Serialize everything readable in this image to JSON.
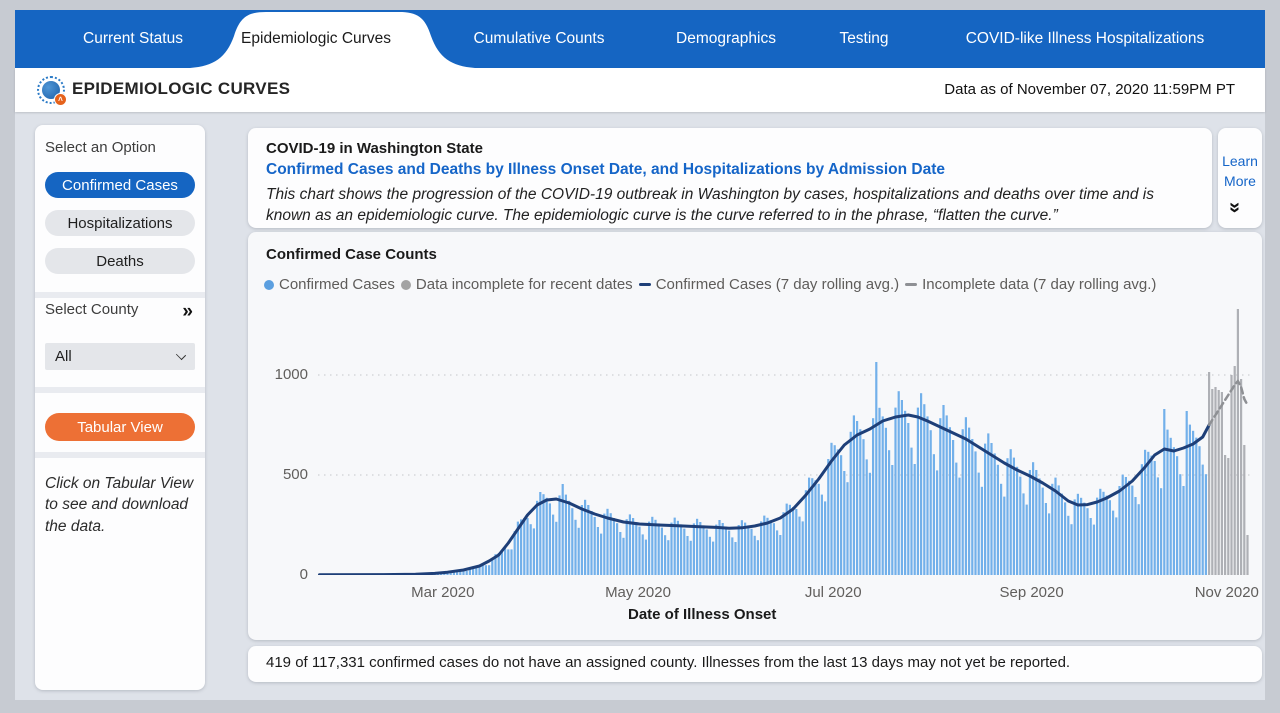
{
  "nav": {
    "active_tab": "Epidemiologic Curves",
    "tabs": [
      {
        "label": "Current Status"
      },
      {
        "label": "Epidemiologic Curves"
      },
      {
        "label": "Cumulative Counts"
      },
      {
        "label": "Demographics"
      },
      {
        "label": "Testing"
      },
      {
        "label": "COVID-like Illness Hospitalizations"
      }
    ]
  },
  "header": {
    "title": "EPIDEMIOLOGIC CURVES",
    "icon": "virus-icon",
    "data_as_of": "Data as of November 07, 2020 11:59PM PT"
  },
  "sidebar": {
    "option_label": "Select an Option",
    "options": [
      {
        "label": "Confirmed Cases",
        "selected": true
      },
      {
        "label": "Hospitalizations",
        "selected": false
      },
      {
        "label": "Deaths",
        "selected": false
      }
    ],
    "county_label": "Select County",
    "county_expand_icon": "»",
    "county_value": "All",
    "tabular_view_label": "Tabular View",
    "help_text": "Click on Tabular View to see and download the data."
  },
  "description": {
    "title": "COVID-19 in Washington State",
    "subtitle": "Confirmed Cases and Deaths by Illness Onset Date, and Hospitalizations by Admission Date",
    "body": "This chart shows the progression of the COVID-19 outbreak in Washington by cases, hospitalizations and deaths over time and is known as an epidemiologic curve. The epidemiologic curve is the curve referred to in the phrase, “flatten the curve.”",
    "learn_more": "Learn More",
    "learn_more_icon": "»"
  },
  "chart": {
    "title": "Confirmed Case Counts",
    "x_axis_title": "Date of Illness Onset",
    "legend": [
      {
        "label": "Confirmed Cases",
        "marker": "dot",
        "color": "#5b9fe0"
      },
      {
        "label": "Data incomplete for recent dates",
        "marker": "dot",
        "color": "#a3a3a3"
      },
      {
        "label": "Confirmed Cases (7 day rolling avg.)",
        "marker": "dash",
        "color": "#1e3f78"
      },
      {
        "label": "Incomplete data (7 day rolling avg.)",
        "marker": "dash",
        "color": "#8e9094"
      }
    ]
  },
  "chart_data": {
    "type": "bar",
    "title": "Confirmed Case Counts",
    "xlabel": "Date of Illness Onset",
    "ylabel": "",
    "start_date": "2020-01-22",
    "end_date": "2020-11-07",
    "ylim": [
      0,
      1375
    ],
    "y_ticks": [
      0,
      500,
      1000
    ],
    "x_ticks": [
      {
        "label": "Mar 2020",
        "day": 39
      },
      {
        "label": "May 2020",
        "day": 100
      },
      {
        "label": "Jul 2020",
        "day": 161
      },
      {
        "label": "Sep 2020",
        "day": 223
      },
      {
        "label": "Nov 2020",
        "day": 284
      }
    ],
    "grid": "dotted-horizontal",
    "legend_position": "top",
    "incomplete_last_n_days": 13,
    "bars_daily": [
      1,
      1,
      1,
      1,
      1,
      1,
      1,
      1,
      1,
      1,
      1,
      1,
      1,
      2,
      2,
      2,
      1,
      1,
      2,
      2,
      2,
      2,
      3,
      2,
      2,
      2,
      3,
      3,
      3,
      3,
      4,
      4,
      4,
      6,
      8,
      8,
      8,
      9,
      9,
      9,
      15,
      19,
      20,
      21,
      22,
      20,
      20,
      35,
      43,
      45,
      46,
      51,
      49,
      49,
      85,
      104,
      110,
      124,
      133,
      128,
      128,
      219,
      267,
      278,
      285,
      285,
      254,
      233,
      371,
      415,
      404,
      386,
      358,
      302,
      266,
      398,
      455,
      402,
      371,
      334,
      276,
      236,
      350,
      376,
      350,
      320,
      290,
      240,
      207,
      307,
      331,
      309,
      285,
      259,
      215,
      186,
      279,
      303,
      285,
      265,
      242,
      203,
      177,
      267,
      291,
      276,
      258,
      237,
      199,
      174,
      262,
      287,
      271,
      253,
      232,
      195,
      171,
      258,
      281,
      265,
      248,
      228,
      191,
      167,
      252,
      275,
      260,
      242,
      222,
      188,
      165,
      250,
      274,
      262,
      248,
      231,
      196,
      174,
      268,
      297,
      286,
      274,
      259,
      223,
      200,
      314,
      357,
      351,
      340,
      330,
      292,
      268,
      424,
      487,
      484,
      474,
      456,
      402,
      368,
      580,
      661,
      649,
      628,
      599,
      520,
      464,
      716,
      798,
      770,
      729,
      679,
      578,
      511,
      784,
      1065,
      836,
      793,
      736,
      624,
      550,
      837,
      919,
      875,
      821,
      760,
      637,
      555,
      837,
      909,
      854,
      793,
      724,
      604,
      523,
      784,
      850,
      798,
      739,
      675,
      562,
      487,
      729,
      789,
      737,
      680,
      618,
      512,
      441,
      657,
      708,
      660,
      608,
      551,
      456,
      392,
      584,
      629,
      587,
      541,
      492,
      408,
      352,
      525,
      564,
      525,
      483,
      437,
      360,
      308,
      456,
      487,
      448,
      407,
      363,
      296,
      254,
      378,
      406,
      386,
      362,
      334,
      285,
      252,
      387,
      431,
      416,
      397,
      374,
      322,
      288,
      445,
      502,
      490,
      471,
      447,
      390,
      354,
      554,
      626,
      616,
      597,
      570,
      488,
      434,
      830,
      727,
      686,
      639,
      594,
      504,
      445,
      820,
      752,
      721,
      687,
      644,
      552,
      504,
      1015,
      930,
      940,
      925,
      915,
      600,
      585,
      1000,
      1045,
      1330,
      980,
      650,
      200
    ],
    "rolling_avg_line": [
      [
        0,
        1
      ],
      [
        20,
        2
      ],
      [
        30,
        4
      ],
      [
        36,
        8
      ],
      [
        40,
        14
      ],
      [
        45,
        25
      ],
      [
        50,
        45
      ],
      [
        53,
        70
      ],
      [
        56,
        100
      ],
      [
        59,
        160
      ],
      [
        62,
        230
      ],
      [
        65,
        300
      ],
      [
        68,
        350
      ],
      [
        71,
        375
      ],
      [
        74,
        380
      ],
      [
        78,
        360
      ],
      [
        82,
        330
      ],
      [
        86,
        305
      ],
      [
        90,
        285
      ],
      [
        95,
        265
      ],
      [
        100,
        255
      ],
      [
        106,
        250
      ],
      [
        112,
        246
      ],
      [
        118,
        242
      ],
      [
        124,
        238
      ],
      [
        128,
        234
      ],
      [
        132,
        236
      ],
      [
        136,
        245
      ],
      [
        140,
        260
      ],
      [
        144,
        285
      ],
      [
        148,
        330
      ],
      [
        152,
        400
      ],
      [
        156,
        480
      ],
      [
        160,
        570
      ],
      [
        164,
        650
      ],
      [
        168,
        700
      ],
      [
        172,
        730
      ],
      [
        176,
        770
      ],
      [
        180,
        790
      ],
      [
        184,
        800
      ],
      [
        187,
        790
      ],
      [
        190,
        770
      ],
      [
        194,
        740
      ],
      [
        198,
        710
      ],
      [
        202,
        680
      ],
      [
        206,
        640
      ],
      [
        210,
        600
      ],
      [
        214,
        560
      ],
      [
        218,
        525
      ],
      [
        222,
        495
      ],
      [
        226,
        460
      ],
      [
        230,
        420
      ],
      [
        234,
        370
      ],
      [
        237,
        350
      ],
      [
        240,
        352
      ],
      [
        243,
        365
      ],
      [
        246,
        385
      ],
      [
        250,
        420
      ],
      [
        254,
        470
      ],
      [
        258,
        540
      ],
      [
        261,
        600
      ],
      [
        264,
        630
      ],
      [
        267,
        620
      ],
      [
        270,
        635
      ],
      [
        273,
        655
      ],
      [
        276,
        690
      ],
      [
        278,
        750
      ]
    ],
    "incomplete_avg_line": [
      [
        278,
        750
      ],
      [
        280,
        800
      ],
      [
        282,
        850
      ],
      [
        284,
        900
      ],
      [
        286,
        950
      ],
      [
        287,
        970
      ],
      [
        288,
        940
      ],
      [
        289,
        880
      ],
      [
        290,
        850
      ]
    ]
  },
  "footer": {
    "note": "419 of 117,331 confirmed cases do not have an assigned county. Illnesses from the last 13 days may not yet be reported."
  },
  "palette": {
    "nav_blue": "#1565c2",
    "accent_blue_text": "#1565c8",
    "orange": "#ed7035",
    "bar_blue": "#72b0ea",
    "bar_gray": "#aeb0b5",
    "line_navy": "#1e3f78",
    "line_gray": "#8e9094",
    "page_bg": "#dee2e9",
    "frame_gray": "#c7cbd2",
    "grid": "#cfd0d4"
  }
}
